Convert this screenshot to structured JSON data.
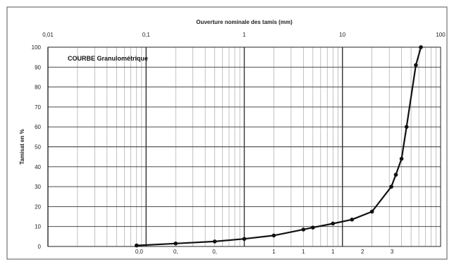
{
  "chart_data": {
    "type": "line",
    "title": "COURBE Granulométrique",
    "xlabel": "Ouverture nominale des tamis (mm)",
    "ylabel": "Tamisat en %",
    "x_scale": "log",
    "xlim": [
      0.01,
      100
    ],
    "ylim": [
      0,
      100
    ],
    "grid": true,
    "x_tick_labels": [
      "0,01",
      "0,1",
      "1",
      "10",
      "100"
    ],
    "y_tick_labels": [
      "0",
      "10",
      "20",
      "30",
      "40",
      "50",
      "60",
      "70",
      "80",
      "90",
      "100"
    ],
    "bottom_labels": [
      "0,0",
      "0,",
      "0,",
      "1",
      "1",
      "1",
      "2",
      "3"
    ],
    "series": [
      {
        "color": "#111111",
        "points": [
          {
            "x": 0.08,
            "y": 0.5
          },
          {
            "x": 0.2,
            "y": 1.5
          },
          {
            "x": 0.5,
            "y": 2.5
          },
          {
            "x": 1,
            "y": 3.8
          },
          {
            "x": 2,
            "y": 5.5
          },
          {
            "x": 4,
            "y": 8.5
          },
          {
            "x": 5,
            "y": 9.5
          },
          {
            "x": 8,
            "y": 11.5
          },
          {
            "x": 12.5,
            "y": 13.5
          },
          {
            "x": 20,
            "y": 17.5
          },
          {
            "x": 31.5,
            "y": 30
          },
          {
            "x": 35,
            "y": 36
          },
          {
            "x": 40,
            "y": 44
          },
          {
            "x": 45,
            "y": 60
          },
          {
            "x": 56,
            "y": 91
          },
          {
            "x": 63,
            "y": 100
          }
        ]
      }
    ]
  }
}
